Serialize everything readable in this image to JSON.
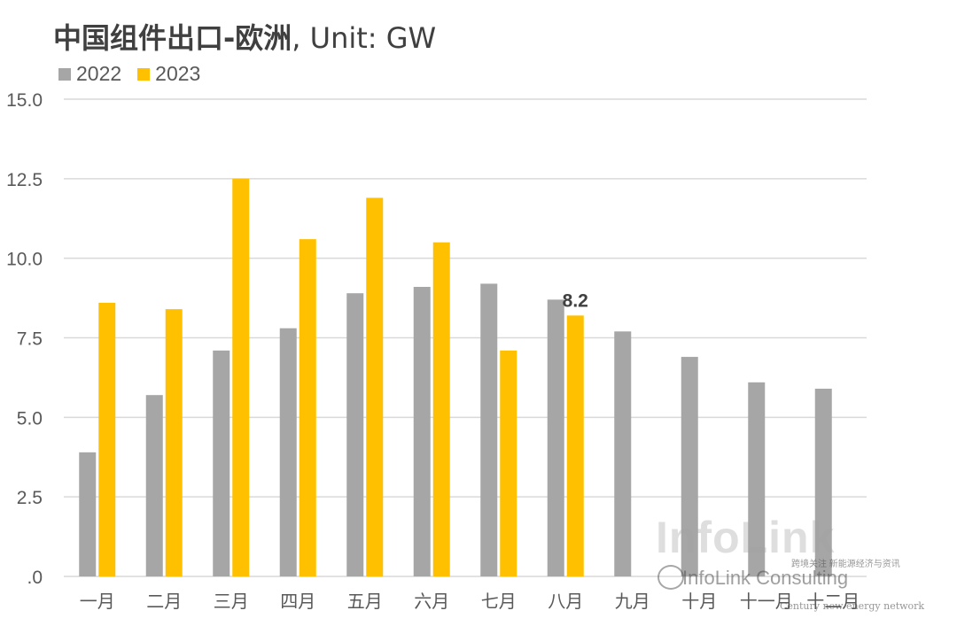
{
  "title_main": "中国组件出口-欧洲",
  "title_suffix": ", Unit: GW",
  "colors": {
    "s2022": "#A6A6A6",
    "s2023": "#FFC000",
    "grid": "#D9D9D9",
    "tick": "#595959"
  },
  "watermark": {
    "brand": "InfoLink",
    "channel": "InfoLink Consulting",
    "tag": "跨境关注 新能源经济与资讯",
    "sub": "Century new energy network"
  },
  "chart_data": {
    "type": "bar",
    "categories": [
      "一月",
      "二月",
      "三月",
      "四月",
      "五月",
      "六月",
      "七月",
      "八月",
      "九月",
      "十月",
      "十一月",
      "十二月"
    ],
    "series": [
      {
        "name": "2022",
        "values": [
          3.9,
          5.7,
          7.1,
          7.8,
          8.9,
          9.1,
          9.2,
          8.7,
          7.7,
          6.9,
          6.1,
          5.9
        ]
      },
      {
        "name": "2023",
        "values": [
          8.6,
          8.4,
          12.5,
          10.6,
          11.9,
          10.5,
          7.1,
          8.2,
          null,
          null,
          null,
          null
        ]
      }
    ],
    "ylim": [
      0,
      15
    ],
    "yticks": [
      {
        "value": 0,
        "label": ".0"
      },
      {
        "value": 2.5,
        "label": "2.5"
      },
      {
        "value": 5,
        "label": "5.0"
      },
      {
        "value": 7.5,
        "label": "7.5"
      },
      {
        "value": 10,
        "label": "10.0"
      },
      {
        "value": 12.5,
        "label": "12.5"
      },
      {
        "value": 15,
        "label": "15.0"
      }
    ],
    "annotations": [
      {
        "series": "2023",
        "category": "八月",
        "label": "8.2"
      }
    ],
    "grid": true,
    "legend": "top-left"
  }
}
